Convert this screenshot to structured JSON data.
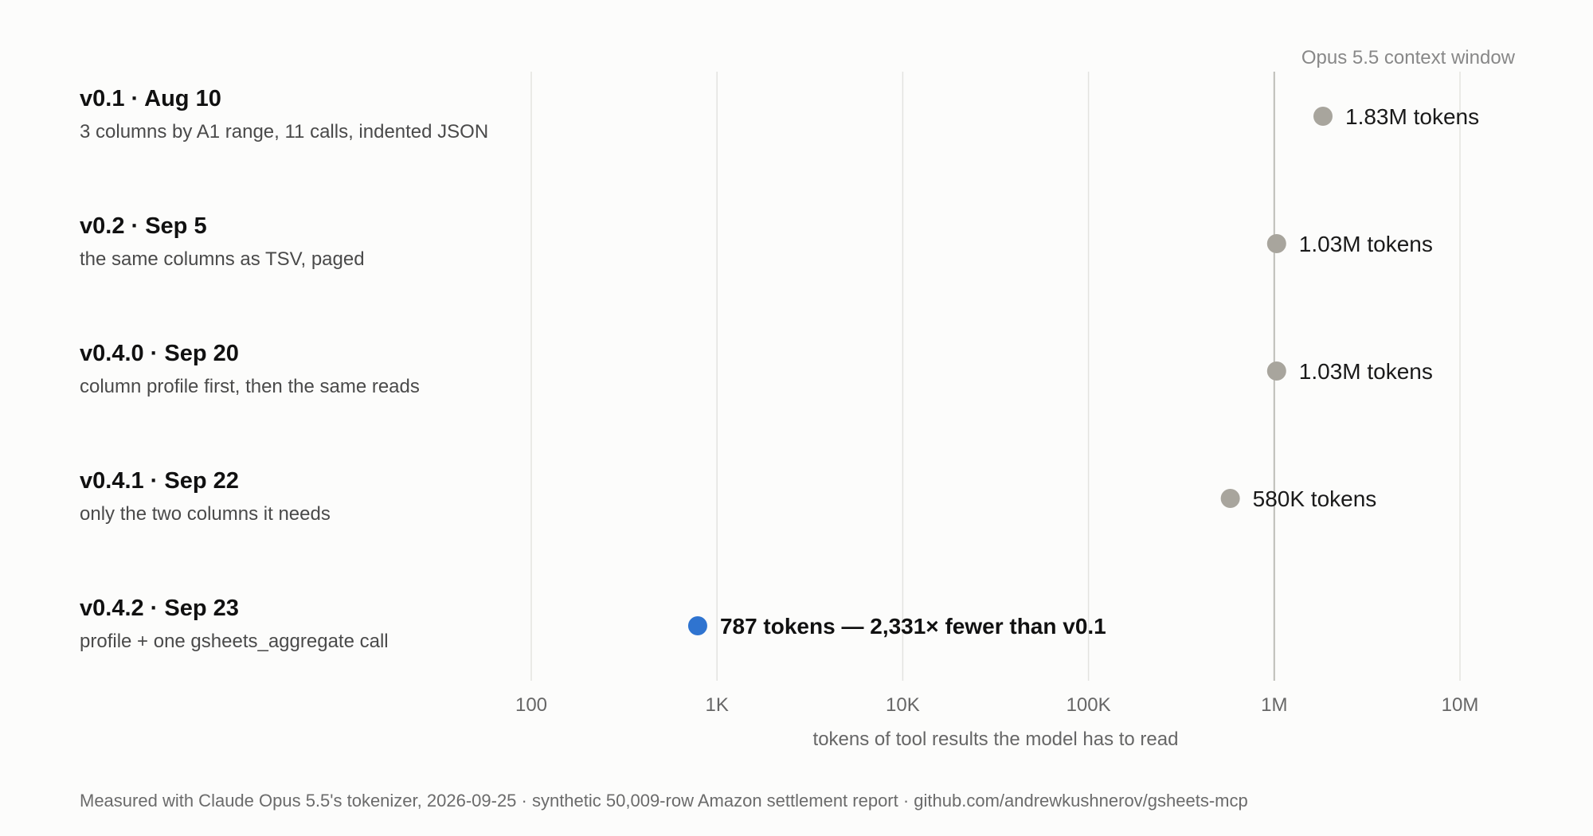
{
  "chart_data": {
    "type": "scatter",
    "x_scale": "log",
    "xlim": [
      100,
      10000000
    ],
    "xlabel": "tokens of tool results the model has to read",
    "x_ticks": [
      {
        "value": 100,
        "label": "100"
      },
      {
        "value": 1000,
        "label": "1K"
      },
      {
        "value": 10000,
        "label": "10K"
      },
      {
        "value": 100000,
        "label": "100K"
      },
      {
        "value": 1000000,
        "label": "1M"
      },
      {
        "value": 10000000,
        "label": "10M"
      }
    ],
    "grid": true,
    "reference_line": {
      "value": 1000000,
      "label": "Opus 5.5 context window"
    },
    "rows": [
      {
        "title": "v0.1 · Aug 10",
        "description": "3 columns by A1 range, 11 calls, indented JSON",
        "value": 1830000,
        "label": "1.83M tokens",
        "highlight": false
      },
      {
        "title": "v0.2 · Sep 5",
        "description": "the same columns as TSV, paged",
        "value": 1030000,
        "label": "1.03M tokens",
        "highlight": false
      },
      {
        "title": "v0.4.0 · Sep 20",
        "description": "column profile first, then the same reads",
        "value": 1030000,
        "label": "1.03M tokens",
        "highlight": false
      },
      {
        "title": "v0.4.1 · Sep 22",
        "description": "only the two columns it needs",
        "value": 580000,
        "label": "580K tokens",
        "highlight": false
      },
      {
        "title": "v0.4.2 · Sep 23",
        "description": "profile + one gsheets_aggregate call",
        "value": 787,
        "label": "787 tokens — 2,331× fewer than v0.1",
        "highlight": true
      }
    ],
    "colors": {
      "point": "#a8a59d",
      "highlight_point": "#2f74d0",
      "grid": "#e3e3e0",
      "reference_line": "#bdbdb8"
    }
  },
  "footnote": "Measured with Claude Opus 5.5's tokenizer, 2026-09-25 · synthetic 50,009-row Amazon settlement report · github.com/andrewkushnerov/gsheets-mcp"
}
